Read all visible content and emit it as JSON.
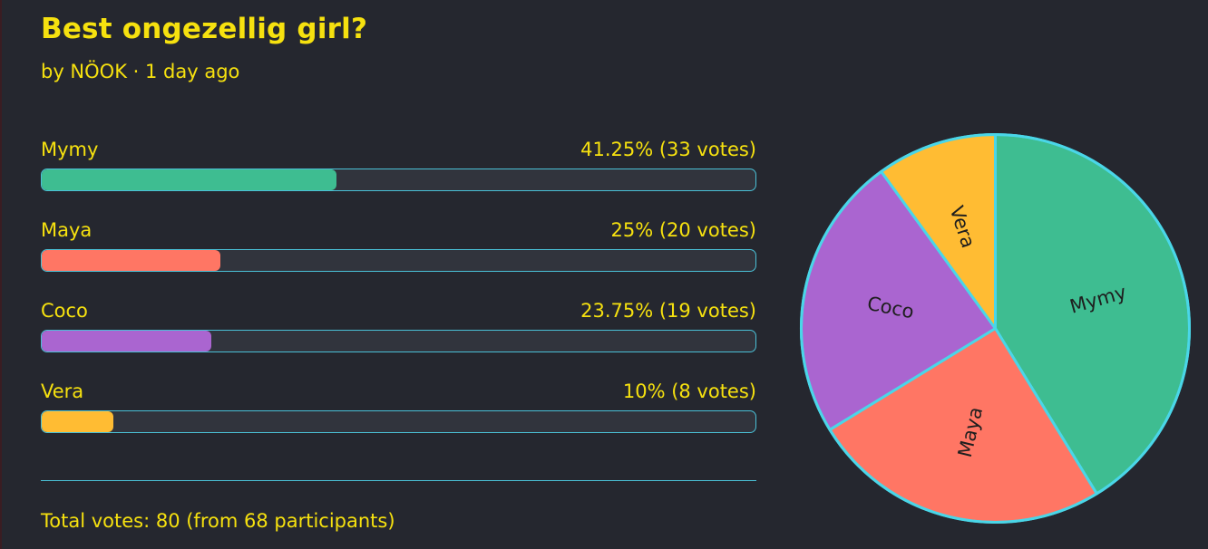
{
  "poll": {
    "title": "Best ongezellig girl?",
    "byline": "by NÖOK · 1 day ago",
    "total": "Total votes: 80 (from 68 participants)"
  },
  "options": [
    {
      "name": "Mymy",
      "stat": "41.25% (33 votes)",
      "percent": 41.25,
      "color": "#3ebd91"
    },
    {
      "name": "Maya",
      "stat": "25% (20 votes)",
      "percent": 25,
      "color": "#ff7664"
    },
    {
      "name": "Coco",
      "stat": "23.75% (19 votes)",
      "percent": 23.75,
      "color": "#aa65d0"
    },
    {
      "name": "Vera",
      "stat": "10% (8 votes)",
      "percent": 10,
      "color": "#ffbc33"
    }
  ],
  "chart_data": {
    "type": "pie",
    "categories": [
      "Mymy",
      "Maya",
      "Coco",
      "Vera"
    ],
    "values": [
      33,
      20,
      19,
      8
    ],
    "colors": [
      "#3ebd91",
      "#ff7664",
      "#aa65d0",
      "#ffbc33"
    ],
    "slice_border_color": "#4ad6e8"
  }
}
